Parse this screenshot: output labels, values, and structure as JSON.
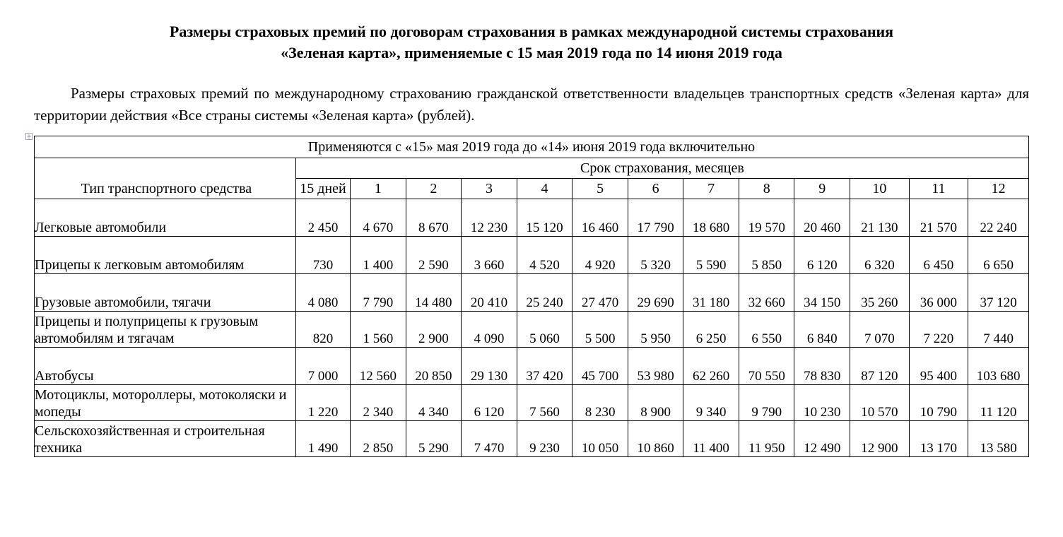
{
  "colors": {
    "text": "#000000",
    "background": "#ffffff",
    "border": "#000000"
  },
  "title_line1": "Размеры страховых премий по договорам страхования в рамках международной системы страхования",
  "title_line2": "«Зеленая карта», применяемые с 15 мая 2019 года по 14 июня 2019 года",
  "intro": "Размеры страховых премий по международному страхованию гражданской ответственности владельцев транспортных средств «Зеленая карта» для территории действия «Все страны системы «Зеленая карта» (рублей).",
  "table": {
    "caption": "Применяются с «15» мая 2019 года до «14» июня 2019 года включительно",
    "row_header_label": "Тип транспортного средства",
    "period_header": "Срок страхования, месяцев",
    "columns": [
      "15 дней",
      "1",
      "2",
      "3",
      "4",
      "5",
      "6",
      "7",
      "8",
      "9",
      "10",
      "11",
      "12"
    ],
    "rows": [
      {
        "label": "Легковые автомобили",
        "two_line": false,
        "values": [
          "2 450",
          "4 670",
          "8 670",
          "12 230",
          "15 120",
          "16 460",
          "17 790",
          "18 680",
          "19 570",
          "20 460",
          "21 130",
          "21 570",
          "22 240"
        ]
      },
      {
        "label": "Прицепы к легковым автомобилям",
        "two_line": false,
        "values": [
          "730",
          "1 400",
          "2 590",
          "3 660",
          "4 520",
          "4 920",
          "5 320",
          "5 590",
          "5 850",
          "6 120",
          "6 320",
          "6 450",
          "6 650"
        ]
      },
      {
        "label": "Грузовые автомобили, тягачи",
        "two_line": false,
        "values": [
          "4 080",
          "7 790",
          "14 480",
          "20 410",
          "25 240",
          "27 470",
          "29 690",
          "31 180",
          "32 660",
          "34 150",
          "35 260",
          "36 000",
          "37 120"
        ]
      },
      {
        "label": "Прицепы и полуприцепы к грузовым автомобилям и тягачам",
        "two_line": true,
        "values": [
          "820",
          "1 560",
          "2 900",
          "4 090",
          "5 060",
          "5 500",
          "5 950",
          "6 250",
          "6 550",
          "6 840",
          "7 070",
          "7 220",
          "7 440"
        ]
      },
      {
        "label": "Автобусы",
        "two_line": false,
        "values": [
          "7 000",
          "12 560",
          "20 850",
          "29 130",
          "37 420",
          "45 700",
          "53 980",
          "62 260",
          "70 550",
          "78 830",
          "87 120",
          "95 400",
          "103 680"
        ]
      },
      {
        "label": "Мотоциклы, мотороллеры, мотоколяски и мопеды",
        "two_line": true,
        "values": [
          "1 220",
          "2 340",
          "4 340",
          "6 120",
          "7 560",
          "8 230",
          "8 900",
          "9 340",
          "9 790",
          "10 230",
          "10 570",
          "10 790",
          "11 120"
        ]
      },
      {
        "label": "Сельскохозяйственная и строительная техника",
        "two_line": true,
        "values": [
          "1 490",
          "2 850",
          "5 290",
          "7 470",
          "9 230",
          "10 050",
          "10 860",
          "11 400",
          "11 950",
          "12 490",
          "12 900",
          "13 170",
          "13 580"
        ]
      }
    ]
  }
}
